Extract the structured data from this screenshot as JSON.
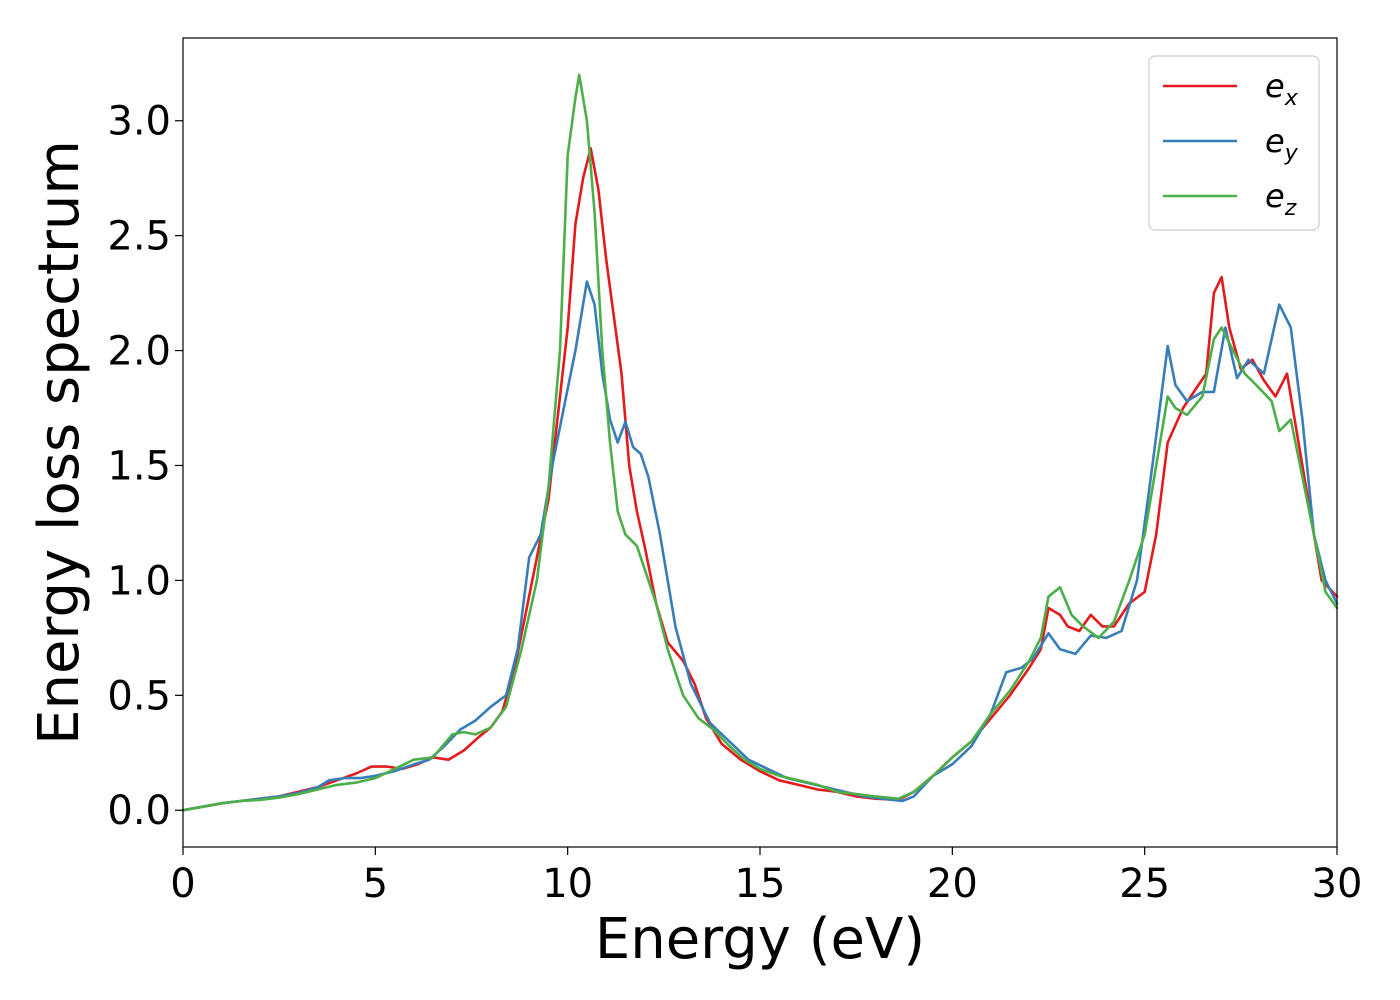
{
  "chart_data": {
    "type": "line",
    "title": "",
    "xlabel": "Energy (eV)",
    "ylabel": "Energy loss spectrum",
    "xlim": [
      0,
      30
    ],
    "ylim": [
      -0.16,
      3.36
    ],
    "xticks": [
      0,
      5,
      10,
      15,
      20,
      25,
      30
    ],
    "xtick_labels": [
      "0",
      "5",
      "10",
      "15",
      "20",
      "25",
      "30"
    ],
    "yticks": [
      0.0,
      0.5,
      1.0,
      1.5,
      2.0,
      2.5,
      3.0
    ],
    "ytick_labels": [
      "0.0",
      "0.5",
      "1.0",
      "1.5",
      "2.0",
      "2.5",
      "3.0"
    ],
    "grid": false,
    "legend_position": "top-right",
    "series": [
      {
        "name": "e",
        "subscript": "x",
        "color": "#e41a1c",
        "points": [
          [
            0,
            0
          ],
          [
            0.5,
            0.015
          ],
          [
            1,
            0.03
          ],
          [
            1.5,
            0.04
          ],
          [
            2,
            0.05
          ],
          [
            2.5,
            0.06
          ],
          [
            3,
            0.08
          ],
          [
            3.5,
            0.1
          ],
          [
            4,
            0.13
          ],
          [
            4.5,
            0.16
          ],
          [
            4.9,
            0.19
          ],
          [
            5.3,
            0.19
          ],
          [
            5.7,
            0.18
          ],
          [
            6.1,
            0.2
          ],
          [
            6.5,
            0.23
          ],
          [
            6.9,
            0.22
          ],
          [
            7.3,
            0.26
          ],
          [
            7.7,
            0.32
          ],
          [
            8,
            0.36
          ],
          [
            8.3,
            0.43
          ],
          [
            8.6,
            0.6
          ],
          [
            8.9,
            0.85
          ],
          [
            9.2,
            1.1
          ],
          [
            9.5,
            1.35
          ],
          [
            9.8,
            1.8
          ],
          [
            10,
            2.1
          ],
          [
            10.2,
            2.55
          ],
          [
            10.4,
            2.75
          ],
          [
            10.6,
            2.88
          ],
          [
            10.8,
            2.7
          ],
          [
            11,
            2.4
          ],
          [
            11.2,
            2.15
          ],
          [
            11.4,
            1.9
          ],
          [
            11.6,
            1.5
          ],
          [
            11.8,
            1.3
          ],
          [
            12,
            1.15
          ],
          [
            12.3,
            0.9
          ],
          [
            12.6,
            0.73
          ],
          [
            13,
            0.65
          ],
          [
            13.3,
            0.55
          ],
          [
            13.6,
            0.4
          ],
          [
            14,
            0.29
          ],
          [
            14.5,
            0.22
          ],
          [
            15,
            0.17
          ],
          [
            15.5,
            0.13
          ],
          [
            16,
            0.11
          ],
          [
            16.5,
            0.09
          ],
          [
            17,
            0.08
          ],
          [
            17.5,
            0.06
          ],
          [
            18,
            0.05
          ],
          [
            18.6,
            0.045
          ],
          [
            19,
            0.08
          ],
          [
            19.5,
            0.15
          ],
          [
            20,
            0.23
          ],
          [
            20.5,
            0.3
          ],
          [
            21,
            0.4
          ],
          [
            21.5,
            0.5
          ],
          [
            22,
            0.62
          ],
          [
            22.3,
            0.7
          ],
          [
            22.5,
            0.88
          ],
          [
            22.8,
            0.85
          ],
          [
            23,
            0.8
          ],
          [
            23.3,
            0.78
          ],
          [
            23.6,
            0.85
          ],
          [
            23.9,
            0.8
          ],
          [
            24.2,
            0.8
          ],
          [
            24.6,
            0.9
          ],
          [
            25,
            0.95
          ],
          [
            25.3,
            1.2
          ],
          [
            25.6,
            1.6
          ],
          [
            26,
            1.75
          ],
          [
            26.4,
            1.85
          ],
          [
            26.6,
            1.9
          ],
          [
            26.8,
            2.25
          ],
          [
            27,
            2.32
          ],
          [
            27.2,
            2.1
          ],
          [
            27.5,
            1.92
          ],
          [
            27.8,
            1.96
          ],
          [
            28.1,
            1.87
          ],
          [
            28.4,
            1.8
          ],
          [
            28.7,
            1.9
          ],
          [
            29,
            1.6
          ],
          [
            29.3,
            1.3
          ],
          [
            29.6,
            1.0
          ],
          [
            30,
            0.93
          ]
        ]
      },
      {
        "name": "e",
        "subscript": "y",
        "color": "#377eb8",
        "points": [
          [
            0,
            0
          ],
          [
            0.5,
            0.015
          ],
          [
            1,
            0.03
          ],
          [
            1.5,
            0.04
          ],
          [
            2,
            0.05
          ],
          [
            2.5,
            0.06
          ],
          [
            3,
            0.075
          ],
          [
            3.5,
            0.1
          ],
          [
            3.8,
            0.13
          ],
          [
            4.2,
            0.14
          ],
          [
            4.6,
            0.14
          ],
          [
            5,
            0.15
          ],
          [
            5.5,
            0.17
          ],
          [
            6,
            0.2
          ],
          [
            6.4,
            0.22
          ],
          [
            6.8,
            0.28
          ],
          [
            7.2,
            0.35
          ],
          [
            7.6,
            0.39
          ],
          [
            8,
            0.45
          ],
          [
            8.4,
            0.5
          ],
          [
            8.7,
            0.7
          ],
          [
            9,
            1.1
          ],
          [
            9.3,
            1.2
          ],
          [
            9.6,
            1.5
          ],
          [
            9.9,
            1.75
          ],
          [
            10.2,
            2.0
          ],
          [
            10.5,
            2.3
          ],
          [
            10.7,
            2.2
          ],
          [
            10.9,
            1.9
          ],
          [
            11.1,
            1.7
          ],
          [
            11.3,
            1.6
          ],
          [
            11.5,
            1.69
          ],
          [
            11.7,
            1.58
          ],
          [
            11.9,
            1.55
          ],
          [
            12.1,
            1.45
          ],
          [
            12.4,
            1.2
          ],
          [
            12.8,
            0.8
          ],
          [
            13.2,
            0.55
          ],
          [
            13.7,
            0.38
          ],
          [
            14.2,
            0.3
          ],
          [
            14.7,
            0.22
          ],
          [
            15.2,
            0.18
          ],
          [
            15.7,
            0.14
          ],
          [
            16.2,
            0.12
          ],
          [
            16.7,
            0.1
          ],
          [
            17.2,
            0.08
          ],
          [
            17.7,
            0.06
          ],
          [
            18.2,
            0.05
          ],
          [
            18.7,
            0.04
          ],
          [
            19,
            0.06
          ],
          [
            19.5,
            0.15
          ],
          [
            20,
            0.2
          ],
          [
            20.5,
            0.28
          ],
          [
            21,
            0.42
          ],
          [
            21.4,
            0.6
          ],
          [
            21.8,
            0.62
          ],
          [
            22.1,
            0.66
          ],
          [
            22.5,
            0.77
          ],
          [
            22.8,
            0.7
          ],
          [
            23.2,
            0.68
          ],
          [
            23.6,
            0.76
          ],
          [
            24,
            0.75
          ],
          [
            24.4,
            0.78
          ],
          [
            24.8,
            1.0
          ],
          [
            25.2,
            1.5
          ],
          [
            25.6,
            2.02
          ],
          [
            25.8,
            1.85
          ],
          [
            26.1,
            1.78
          ],
          [
            26.5,
            1.82
          ],
          [
            26.8,
            1.82
          ],
          [
            27.1,
            2.1
          ],
          [
            27.4,
            1.88
          ],
          [
            27.7,
            1.96
          ],
          [
            28.1,
            1.9
          ],
          [
            28.5,
            2.2
          ],
          [
            28.8,
            2.1
          ],
          [
            29.1,
            1.7
          ],
          [
            29.4,
            1.2
          ],
          [
            29.7,
            1.0
          ],
          [
            30,
            0.9
          ]
        ]
      },
      {
        "name": "e",
        "subscript": "z",
        "color": "#4daf4a",
        "points": [
          [
            0,
            0
          ],
          [
            0.5,
            0.015
          ],
          [
            1,
            0.03
          ],
          [
            1.5,
            0.04
          ],
          [
            2,
            0.045
          ],
          [
            2.5,
            0.055
          ],
          [
            3,
            0.07
          ],
          [
            3.5,
            0.09
          ],
          [
            4,
            0.11
          ],
          [
            4.5,
            0.12
          ],
          [
            5,
            0.14
          ],
          [
            5.5,
            0.18
          ],
          [
            6,
            0.22
          ],
          [
            6.5,
            0.23
          ],
          [
            7,
            0.33
          ],
          [
            7.3,
            0.34
          ],
          [
            7.6,
            0.33
          ],
          [
            8,
            0.36
          ],
          [
            8.4,
            0.45
          ],
          [
            8.8,
            0.7
          ],
          [
            9.2,
            1.0
          ],
          [
            9.5,
            1.4
          ],
          [
            9.8,
            2.0
          ],
          [
            10,
            2.85
          ],
          [
            10.2,
            3.1
          ],
          [
            10.3,
            3.2
          ],
          [
            10.5,
            3.0
          ],
          [
            10.7,
            2.6
          ],
          [
            10.9,
            2.0
          ],
          [
            11.1,
            1.6
          ],
          [
            11.3,
            1.3
          ],
          [
            11.5,
            1.2
          ],
          [
            11.8,
            1.15
          ],
          [
            12,
            1.05
          ],
          [
            12.3,
            0.9
          ],
          [
            12.6,
            0.7
          ],
          [
            13,
            0.5
          ],
          [
            13.4,
            0.4
          ],
          [
            13.8,
            0.35
          ],
          [
            14.2,
            0.28
          ],
          [
            14.6,
            0.22
          ],
          [
            15,
            0.18
          ],
          [
            15.5,
            0.15
          ],
          [
            16,
            0.13
          ],
          [
            16.5,
            0.11
          ],
          [
            17,
            0.08
          ],
          [
            17.5,
            0.07
          ],
          [
            18,
            0.06
          ],
          [
            18.6,
            0.05
          ],
          [
            19,
            0.08
          ],
          [
            19.5,
            0.15
          ],
          [
            20,
            0.23
          ],
          [
            20.5,
            0.3
          ],
          [
            21,
            0.42
          ],
          [
            21.5,
            0.52
          ],
          [
            22,
            0.65
          ],
          [
            22.3,
            0.75
          ],
          [
            22.5,
            0.93
          ],
          [
            22.8,
            0.97
          ],
          [
            23.1,
            0.85
          ],
          [
            23.4,
            0.8
          ],
          [
            23.8,
            0.75
          ],
          [
            24.2,
            0.82
          ],
          [
            24.6,
            1.0
          ],
          [
            25,
            1.2
          ],
          [
            25.3,
            1.5
          ],
          [
            25.6,
            1.8
          ],
          [
            25.8,
            1.75
          ],
          [
            26.1,
            1.72
          ],
          [
            26.5,
            1.8
          ],
          [
            26.8,
            2.05
          ],
          [
            27,
            2.1
          ],
          [
            27.3,
            2.0
          ],
          [
            27.6,
            1.9
          ],
          [
            27.9,
            1.85
          ],
          [
            28.3,
            1.78
          ],
          [
            28.5,
            1.65
          ],
          [
            28.8,
            1.7
          ],
          [
            29.1,
            1.45
          ],
          [
            29.4,
            1.2
          ],
          [
            29.7,
            0.95
          ],
          [
            30,
            0.88
          ]
        ]
      }
    ]
  }
}
